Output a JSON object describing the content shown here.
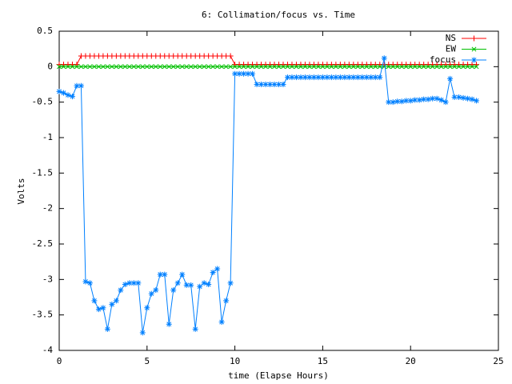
{
  "chart_data": {
    "type": "linespoints",
    "title": "6: Collimation/focus vs. Time",
    "xlabel": "time (Elapse Hours)",
    "ylabel": "Volts",
    "x": [
      0,
      0.25,
      0.5,
      0.75,
      1,
      1.25,
      1.5,
      1.75,
      2,
      2.25,
      2.5,
      2.75,
      3,
      3.25,
      3.5,
      3.75,
      4,
      4.25,
      4.5,
      4.75,
      5,
      5.25,
      5.5,
      5.75,
      6,
      6.25,
      6.5,
      6.75,
      7,
      7.25,
      7.5,
      7.75,
      8,
      8.25,
      8.5,
      8.75,
      9,
      9.25,
      9.5,
      9.75,
      10,
      10.25,
      10.5,
      10.75,
      11,
      11.25,
      11.5,
      11.75,
      12,
      12.25,
      12.5,
      12.75,
      13,
      13.25,
      13.5,
      13.75,
      14,
      14.25,
      14.5,
      14.75,
      15,
      15.25,
      15.5,
      15.75,
      16,
      16.25,
      16.5,
      16.75,
      17,
      17.25,
      17.5,
      17.75,
      18,
      18.25,
      18.5,
      18.75,
      19,
      19.25,
      19.5,
      19.75,
      20,
      20.25,
      20.5,
      20.75,
      21,
      21.25,
      21.5,
      21.75,
      22,
      22.25,
      22.5,
      22.75,
      23,
      23.25,
      23.5,
      23.75
    ],
    "series": [
      {
        "name": "NS",
        "color": "#ff0000",
        "marker": "plus",
        "values": [
          0.03,
          0.03,
          0.03,
          0.03,
          0.03,
          0.15,
          0.15,
          0.15,
          0.15,
          0.15,
          0.15,
          0.15,
          0.15,
          0.15,
          0.15,
          0.15,
          0.15,
          0.15,
          0.15,
          0.15,
          0.15,
          0.15,
          0.15,
          0.15,
          0.15,
          0.15,
          0.15,
          0.15,
          0.15,
          0.15,
          0.15,
          0.15,
          0.15,
          0.15,
          0.15,
          0.15,
          0.15,
          0.15,
          0.15,
          0.15,
          0.03,
          0.03,
          0.03,
          0.03,
          0.03,
          0.03,
          0.03,
          0.03,
          0.03,
          0.03,
          0.03,
          0.03,
          0.03,
          0.03,
          0.03,
          0.03,
          0.03,
          0.03,
          0.03,
          0.03,
          0.03,
          0.03,
          0.03,
          0.03,
          0.03,
          0.03,
          0.03,
          0.03,
          0.03,
          0.03,
          0.03,
          0.03,
          0.03,
          0.03,
          0.03,
          0.03,
          0.03,
          0.03,
          0.03,
          0.03,
          0.03,
          0.03,
          0.03,
          0.03,
          0.03,
          0.03,
          0.03,
          0.03,
          0.03,
          0.03,
          0.03,
          0.03,
          0.03,
          0.03,
          0.03,
          0.03
        ]
      },
      {
        "name": "EW",
        "color": "#00c000",
        "marker": "cross",
        "values": [
          0,
          0,
          0,
          0,
          0,
          0,
          0,
          0,
          0,
          0,
          0,
          0,
          0,
          0,
          0,
          0,
          0,
          0,
          0,
          0,
          0,
          0,
          0,
          0,
          0,
          0,
          0,
          0,
          0,
          0,
          0,
          0,
          0,
          0,
          0,
          0,
          0,
          0,
          0,
          0,
          0,
          0,
          0,
          0,
          0,
          0,
          0,
          0,
          0,
          0,
          0,
          0,
          0,
          0,
          0,
          0,
          0,
          0,
          0,
          0,
          0,
          0,
          0,
          0,
          0,
          0,
          0,
          0,
          0,
          0,
          0,
          0,
          0,
          0,
          0,
          0,
          0,
          0,
          0,
          0,
          0,
          0,
          0,
          0,
          0,
          0,
          0,
          0,
          0,
          0,
          0,
          0,
          0,
          0,
          0,
          0
        ]
      },
      {
        "name": "focus",
        "color": "#0080ff",
        "marker": "star",
        "values": [
          -0.35,
          -0.37,
          -0.4,
          -0.42,
          -0.27,
          -0.27,
          -3.03,
          -3.05,
          -3.3,
          -3.42,
          -3.4,
          -3.7,
          -3.35,
          -3.3,
          -3.15,
          -3.07,
          -3.05,
          -3.05,
          -3.05,
          -3.75,
          -3.4,
          -3.2,
          -3.15,
          -2.93,
          -2.93,
          -3.63,
          -3.15,
          -3.05,
          -2.93,
          -3.08,
          -3.08,
          -3.7,
          -3.1,
          -3.05,
          -3.07,
          -2.9,
          -2.85,
          -3.6,
          -3.3,
          -3.05,
          -0.1,
          -0.1,
          -0.1,
          -0.1,
          -0.1,
          -0.25,
          -0.25,
          -0.25,
          -0.25,
          -0.25,
          -0.25,
          -0.25,
          -0.15,
          -0.15,
          -0.15,
          -0.15,
          -0.15,
          -0.15,
          -0.15,
          -0.15,
          -0.15,
          -0.15,
          -0.15,
          -0.15,
          -0.15,
          -0.15,
          -0.15,
          -0.15,
          -0.15,
          -0.15,
          -0.15,
          -0.15,
          -0.15,
          -0.15,
          0.12,
          -0.5,
          -0.5,
          -0.49,
          -0.49,
          -0.48,
          -0.48,
          -0.47,
          -0.47,
          -0.46,
          -0.46,
          -0.45,
          -0.45,
          -0.47,
          -0.5,
          -0.17,
          -0.43,
          -0.43,
          -0.44,
          -0.45,
          -0.46,
          -0.48
        ]
      }
    ],
    "xlim": [
      0,
      25
    ],
    "xticks": [
      0,
      5,
      10,
      15,
      20,
      25
    ],
    "ylim": [
      -4,
      0.5
    ],
    "yticks": [
      0.5,
      0,
      -0.5,
      -1,
      -1.5,
      -2,
      -2.5,
      -3,
      -3.5,
      -4
    ],
    "grid": false,
    "legend": "top-right"
  }
}
